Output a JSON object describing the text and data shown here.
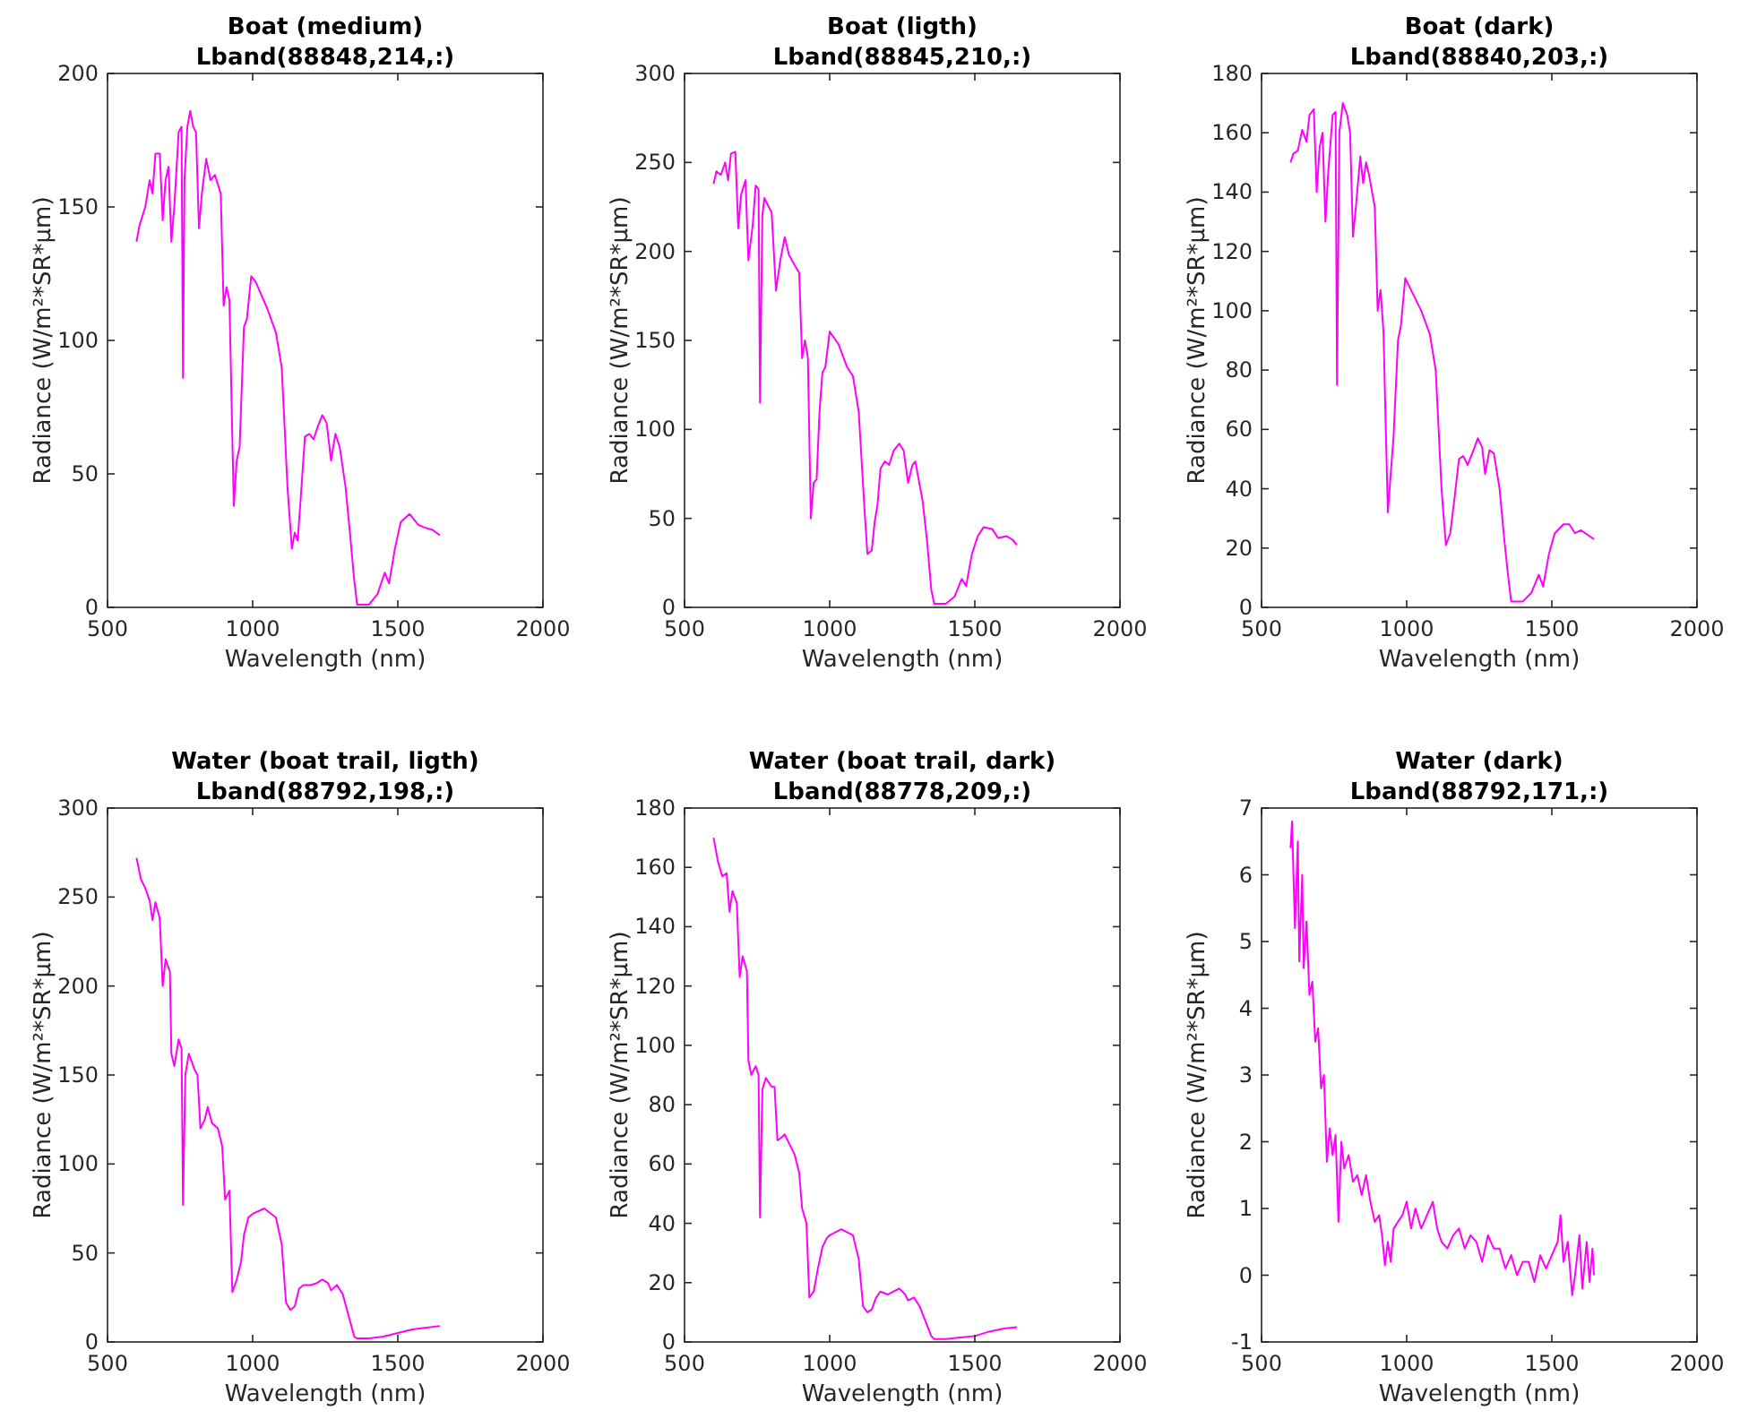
{
  "chart_data": [
    {
      "type": "line",
      "title": "Boat (medium)",
      "subtitle": "Lband(88848,214,:)",
      "xlabel": "Wavelength (nm)",
      "ylabel": "Radiance (W/m²*SR*μm)",
      "xlim": [
        500,
        2000
      ],
      "xticks": [
        500,
        1000,
        1500,
        2000
      ],
      "ylim": [
        0,
        200
      ],
      "yticks": [
        0,
        50,
        100,
        150,
        200
      ],
      "series": [
        {
          "color": "#ff00ff",
          "x": [
            600,
            610,
            630,
            645,
            655,
            665,
            680,
            690,
            700,
            710,
            720,
            730,
            745,
            755,
            760,
            765,
            775,
            785,
            795,
            805,
            815,
            825,
            840,
            855,
            870,
            890,
            900,
            910,
            920,
            935,
            945,
            955,
            970,
            980,
            995,
            1010,
            1050,
            1080,
            1100,
            1120,
            1135,
            1145,
            1155,
            1165,
            1180,
            1195,
            1210,
            1225,
            1240,
            1255,
            1270,
            1285,
            1300,
            1320,
            1335,
            1350,
            1360,
            1400,
            1430,
            1455,
            1470,
            1490,
            1510,
            1540,
            1570,
            1590,
            1620,
            1645
          ],
          "values": [
            137,
            143,
            150,
            160,
            155,
            170,
            170,
            145,
            160,
            165,
            137,
            150,
            178,
            180,
            86,
            160,
            180,
            186,
            180,
            178,
            142,
            155,
            168,
            160,
            162,
            155,
            113,
            120,
            115,
            38,
            55,
            60,
            105,
            108,
            124,
            122,
            112,
            103,
            90,
            45,
            22,
            28,
            25,
            40,
            64,
            65,
            63,
            68,
            72,
            69,
            55,
            65,
            60,
            45,
            28,
            10,
            1,
            1,
            5,
            13,
            9,
            22,
            32,
            35,
            31,
            30,
            29,
            27
          ]
        }
      ]
    },
    {
      "type": "line",
      "title": "Boat (ligth)",
      "subtitle": "Lband(88845,210,:)",
      "xlabel": "Wavelength (nm)",
      "ylabel": "Radiance (W/m²*SR*μm)",
      "xlim": [
        500,
        2000
      ],
      "xticks": [
        500,
        1000,
        1500,
        2000
      ],
      "ylim": [
        0,
        300
      ],
      "yticks": [
        0,
        50,
        100,
        150,
        200,
        250,
        300
      ],
      "series": [
        {
          "color": "#ff00ff",
          "x": [
            600,
            610,
            625,
            640,
            650,
            660,
            675,
            685,
            695,
            710,
            720,
            735,
            745,
            755,
            760,
            768,
            775,
            790,
            800,
            815,
            830,
            845,
            860,
            880,
            895,
            905,
            915,
            925,
            935,
            945,
            955,
            965,
            975,
            985,
            1000,
            1030,
            1060,
            1080,
            1100,
            1120,
            1130,
            1145,
            1155,
            1165,
            1175,
            1190,
            1205,
            1220,
            1240,
            1255,
            1270,
            1285,
            1295,
            1320,
            1335,
            1350,
            1360,
            1400,
            1430,
            1455,
            1470,
            1490,
            1510,
            1530,
            1560,
            1580,
            1610,
            1630,
            1645
          ],
          "values": [
            238,
            245,
            243,
            250,
            240,
            255,
            256,
            213,
            232,
            240,
            195,
            215,
            237,
            235,
            115,
            220,
            230,
            225,
            222,
            178,
            195,
            208,
            198,
            192,
            188,
            140,
            150,
            140,
            50,
            70,
            72,
            110,
            132,
            135,
            155,
            148,
            135,
            130,
            110,
            55,
            30,
            32,
            48,
            58,
            78,
            82,
            80,
            88,
            92,
            88,
            70,
            80,
            82,
            60,
            38,
            10,
            2,
            2,
            6,
            16,
            12,
            30,
            40,
            45,
            44,
            39,
            40,
            38,
            35
          ]
        }
      ]
    },
    {
      "type": "line",
      "title": "Boat (dark)",
      "subtitle": "Lband(88840,203,:)",
      "xlabel": "Wavelength (nm)",
      "ylabel": "Radiance (W/m²*SR*μm)",
      "xlim": [
        500,
        2000
      ],
      "xticks": [
        500,
        1000,
        1500,
        2000
      ],
      "ylim": [
        0,
        180
      ],
      "yticks": [
        0,
        20,
        40,
        60,
        80,
        100,
        120,
        140,
        160,
        180
      ],
      "series": [
        {
          "color": "#ff00ff",
          "x": [
            600,
            610,
            625,
            640,
            655,
            665,
            680,
            690,
            700,
            710,
            720,
            730,
            745,
            755,
            760,
            768,
            780,
            795,
            805,
            815,
            825,
            840,
            850,
            860,
            870,
            890,
            900,
            910,
            920,
            935,
            945,
            955,
            970,
            980,
            995,
            1010,
            1050,
            1080,
            1100,
            1120,
            1135,
            1150,
            1165,
            1180,
            1195,
            1210,
            1230,
            1245,
            1260,
            1270,
            1285,
            1300,
            1320,
            1335,
            1350,
            1360,
            1400,
            1430,
            1455,
            1470,
            1490,
            1510,
            1540,
            1560,
            1580,
            1600,
            1630,
            1645
          ],
          "values": [
            150,
            153,
            154,
            161,
            157,
            166,
            168,
            140,
            155,
            160,
            130,
            147,
            166,
            167,
            75,
            160,
            170,
            166,
            160,
            125,
            135,
            152,
            143,
            150,
            146,
            135,
            100,
            107,
            93,
            32,
            45,
            58,
            90,
            95,
            111,
            108,
            100,
            92,
            80,
            40,
            21,
            25,
            37,
            50,
            51,
            48,
            53,
            57,
            54,
            45,
            53,
            52,
            40,
            24,
            10,
            2,
            2,
            5,
            11,
            7,
            18,
            25,
            28,
            28,
            25,
            26,
            24,
            23
          ]
        }
      ]
    },
    {
      "type": "line",
      "title": "Water (boat trail, ligth)",
      "subtitle": "Lband(88792,198,:)",
      "xlabel": "Wavelength (nm)",
      "ylabel": "Radiance (W/m²*SR*μm)",
      "xlim": [
        500,
        2000
      ],
      "xticks": [
        500,
        1000,
        1500,
        2000
      ],
      "ylim": [
        0,
        300
      ],
      "yticks": [
        0,
        50,
        100,
        150,
        200,
        250,
        300
      ],
      "series": [
        {
          "color": "#ff00ff",
          "x": [
            600,
            615,
            630,
            645,
            655,
            665,
            680,
            690,
            700,
            715,
            720,
            730,
            745,
            755,
            760,
            768,
            780,
            800,
            810,
            820,
            835,
            845,
            860,
            880,
            895,
            905,
            920,
            930,
            945,
            960,
            970,
            985,
            1000,
            1040,
            1080,
            1100,
            1115,
            1130,
            1145,
            1160,
            1175,
            1200,
            1220,
            1240,
            1260,
            1270,
            1290,
            1310,
            1330,
            1350,
            1360,
            1400,
            1450,
            1500,
            1550,
            1600,
            1645
          ],
          "values": [
            272,
            260,
            255,
            248,
            237,
            247,
            238,
            200,
            215,
            208,
            162,
            155,
            170,
            165,
            77,
            150,
            162,
            153,
            150,
            120,
            125,
            132,
            123,
            120,
            110,
            80,
            85,
            28,
            35,
            45,
            60,
            70,
            72,
            75,
            70,
            55,
            22,
            18,
            20,
            30,
            32,
            32,
            33,
            35,
            33,
            29,
            32,
            27,
            15,
            3,
            2,
            2,
            3,
            5,
            7,
            8,
            9
          ]
        }
      ]
    },
    {
      "type": "line",
      "title": "Water (boat trail, dark)",
      "subtitle": "Lband(88778,209,:)",
      "xlabel": "Wavelength (nm)",
      "ylabel": "Radiance (W/m²*SR*μm)",
      "xlim": [
        500,
        2000
      ],
      "xticks": [
        500,
        1000,
        1500,
        2000
      ],
      "ylim": [
        0,
        180
      ],
      "yticks": [
        0,
        20,
        40,
        60,
        80,
        100,
        120,
        140,
        160,
        180
      ],
      "series": [
        {
          "color": "#ff00ff",
          "x": [
            600,
            615,
            630,
            645,
            655,
            665,
            680,
            690,
            700,
            715,
            720,
            730,
            745,
            755,
            760,
            768,
            780,
            800,
            810,
            820,
            835,
            845,
            860,
            880,
            895,
            905,
            920,
            930,
            945,
            960,
            975,
            990,
            1000,
            1040,
            1080,
            1100,
            1115,
            1130,
            1145,
            1160,
            1175,
            1200,
            1220,
            1240,
            1260,
            1270,
            1290,
            1310,
            1330,
            1350,
            1360,
            1400,
            1450,
            1500,
            1550,
            1600,
            1645
          ],
          "values": [
            170,
            162,
            157,
            158,
            145,
            152,
            148,
            123,
            130,
            125,
            95,
            90,
            93,
            90,
            42,
            85,
            89,
            86,
            86,
            68,
            69,
            70,
            67,
            63,
            57,
            45,
            40,
            15,
            17,
            25,
            32,
            35,
            36,
            38,
            36,
            28,
            12,
            10,
            11,
            15,
            17,
            16,
            17,
            18,
            16,
            14,
            15,
            12,
            7,
            2,
            1,
            1,
            1.5,
            2,
            3.5,
            4.5,
            5
          ]
        }
      ]
    },
    {
      "type": "line",
      "title": "Water (dark)",
      "subtitle": "Lband(88792,171,:)",
      "xlabel": "Wavelength (nm)",
      "ylabel": "Radiance (W/m²*SR*μm)",
      "xlim": [
        500,
        2000
      ],
      "xticks": [
        500,
        1000,
        1500,
        2000
      ],
      "ylim": [
        -1,
        7
      ],
      "yticks": [
        -1,
        0,
        1,
        2,
        3,
        4,
        5,
        6,
        7
      ],
      "series": [
        {
          "color": "#ff00ff",
          "x": [
            600,
            605,
            615,
            625,
            630,
            640,
            645,
            655,
            665,
            675,
            685,
            695,
            705,
            715,
            725,
            735,
            745,
            755,
            765,
            775,
            785,
            800,
            815,
            830,
            845,
            860,
            875,
            890,
            905,
            915,
            925,
            935,
            945,
            955,
            970,
            985,
            1000,
            1015,
            1030,
            1050,
            1070,
            1090,
            1105,
            1120,
            1140,
            1160,
            1180,
            1200,
            1220,
            1240,
            1260,
            1280,
            1300,
            1320,
            1340,
            1360,
            1380,
            1400,
            1420,
            1440,
            1460,
            1480,
            1500,
            1520,
            1530,
            1540,
            1555,
            1570,
            1580,
            1595,
            1605,
            1620,
            1630,
            1640,
            1645
          ],
          "values": [
            6.4,
            6.8,
            5.2,
            6.5,
            4.7,
            6.0,
            4.6,
            5.3,
            4.2,
            4.4,
            3.5,
            3.7,
            2.8,
            3.0,
            1.7,
            2.2,
            1.8,
            2.1,
            0.8,
            2.0,
            1.6,
            1.8,
            1.4,
            1.5,
            1.2,
            1.5,
            1.1,
            0.8,
            0.9,
            0.6,
            0.15,
            0.5,
            0.2,
            0.7,
            0.8,
            0.9,
            1.1,
            0.7,
            1.0,
            0.7,
            0.9,
            1.1,
            0.7,
            0.5,
            0.4,
            0.6,
            0.7,
            0.4,
            0.6,
            0.5,
            0.2,
            0.6,
            0.4,
            0.4,
            0.1,
            0.3,
            0.0,
            0.2,
            0.2,
            -0.1,
            0.3,
            0.1,
            0.3,
            0.5,
            0.9,
            0.2,
            0.5,
            -0.3,
            0.0,
            0.6,
            -0.2,
            0.5,
            -0.1,
            0.4,
            0
          ]
        }
      ]
    }
  ]
}
